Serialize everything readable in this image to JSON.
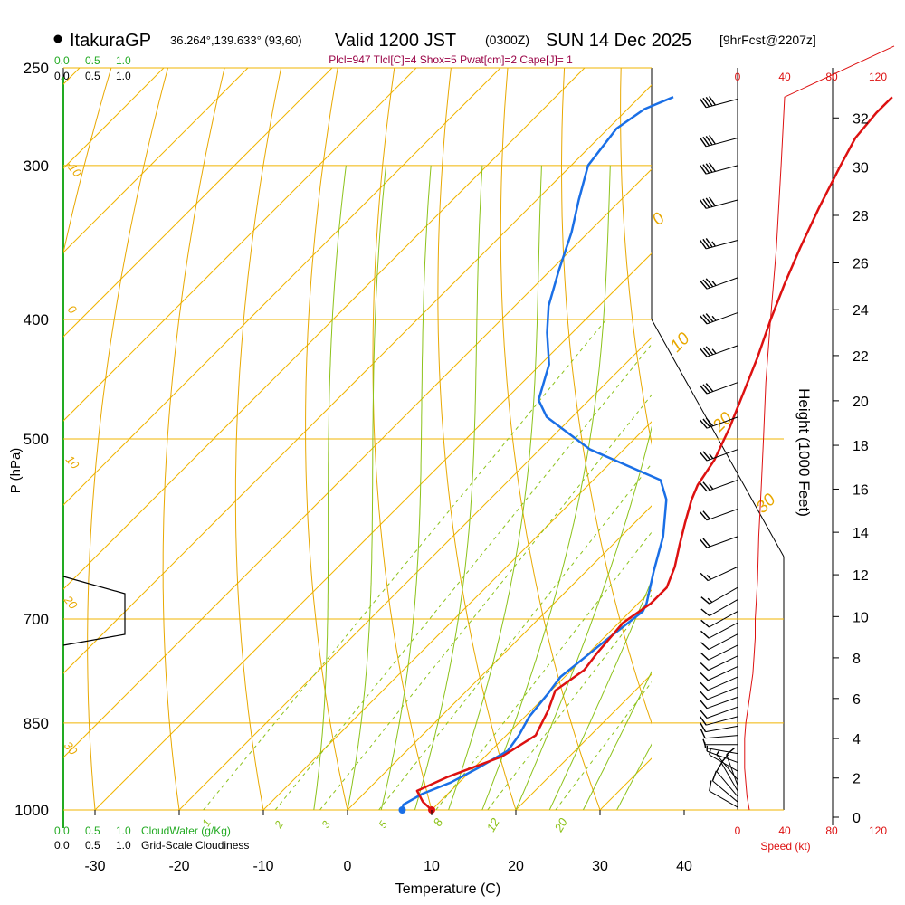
{
  "header": {
    "site": "ItakuraGP",
    "coords": "36.264°,139.633° (93,60)",
    "valid": "Valid 1200 JST",
    "zulu": "(0300Z)",
    "date": "SUN 14 Dec 2025",
    "fcst": "[9hrFcst@2207z]"
  },
  "params_line": "Plcl=947 Tlcl[C]=4 Shox=5 Pwat[cm]=2 Cape[J]= 1",
  "colors": {
    "temp": "#dd1111",
    "dewpoint": "#1a6fe6",
    "isotherm": "#f0b400",
    "dry_adiabat": "#e8a800",
    "moist_adiabat": "#8cc21a",
    "mixing_ratio": "#8cc21a",
    "cloudwater": "#22aa22",
    "wind": "#000000",
    "speed": "#dd1111",
    "params": "#990044"
  },
  "chart_data": {
    "type": "line",
    "title": "ItakuraGP Valid 1200 JST (0300Z) SUN 14 Dec 2025 [9hrFcst@2207z]",
    "xlabel": "Temperature (C)",
    "ylabel": "P (hPa)",
    "y2label": "Height (1000 Feet)",
    "x_ticks": [
      -30,
      -20,
      -10,
      0,
      10,
      20,
      30,
      40
    ],
    "xlim": [
      -34,
      36
    ],
    "pressure_ticks": [
      1000,
      850,
      700,
      500,
      400,
      300,
      250
    ],
    "ylim": [
      1000,
      250
    ],
    "height_ticks": [
      0,
      2,
      4,
      6,
      8,
      10,
      12,
      14,
      16,
      18,
      20,
      22,
      24,
      26,
      28,
      30,
      32
    ],
    "series": [
      {
        "name": "Temperature",
        "points": [
          [
            10,
            1000
          ],
          [
            8,
            985
          ],
          [
            6,
            965
          ],
          [
            8,
            940
          ],
          [
            12,
            905
          ],
          [
            13.5,
            870
          ],
          [
            12,
            830
          ],
          [
            10.5,
            800
          ],
          [
            11.5,
            770
          ],
          [
            11,
            745
          ],
          [
            10.5,
            705
          ],
          [
            11.5,
            680
          ],
          [
            11.5,
            660
          ],
          [
            10,
            635
          ],
          [
            8,
            610
          ],
          [
            6,
            585
          ],
          [
            4,
            560
          ],
          [
            3,
            545
          ],
          [
            2,
            520
          ],
          [
            0,
            490
          ],
          [
            -2,
            465
          ],
          [
            -5,
            430
          ],
          [
            -8,
            400
          ],
          [
            -10.5,
            375
          ],
          [
            -13,
            350
          ],
          [
            -15.5,
            325
          ],
          [
            -18,
            300
          ],
          [
            -19.5,
            285
          ],
          [
            -20,
            272
          ],
          [
            -20,
            264
          ]
        ]
      },
      {
        "name": "Dewpoint",
        "points": [
          [
            6.5,
            1000
          ],
          [
            6,
            990
          ],
          [
            7,
            970
          ],
          [
            9,
            950
          ],
          [
            10.5,
            925
          ],
          [
            12,
            895
          ],
          [
            11.5,
            870
          ],
          [
            10.5,
            840
          ],
          [
            10,
            805
          ],
          [
            9.5,
            780
          ],
          [
            10,
            755
          ],
          [
            10.5,
            730
          ],
          [
            11.5,
            690
          ],
          [
            11,
            680
          ],
          [
            8,
            640
          ],
          [
            5,
            600
          ],
          [
            1,
            560
          ],
          [
            -2,
            540
          ],
          [
            -14,
            510
          ],
          [
            -23,
            480
          ],
          [
            -26,
            465
          ],
          [
            -29,
            435
          ],
          [
            -33,
            410
          ],
          [
            -36,
            390
          ],
          [
            -39,
            365
          ],
          [
            -42,
            340
          ],
          [
            -45,
            320
          ],
          [
            -48,
            300
          ],
          [
            -49,
            280
          ],
          [
            -48,
            270
          ],
          [
            -46,
            264
          ]
        ]
      }
    ],
    "dry_adiabat_labels": [
      "-10",
      "0",
      "10",
      "20",
      "30",
      "0",
      "10",
      "20",
      "30"
    ],
    "moist_adiabat_labels": [
      "8",
      "12",
      "20"
    ],
    "mixing_ratio_labels": [
      "1",
      "2",
      "3",
      "5"
    ],
    "cloudwater_scale": [
      "0.0",
      "0.5",
      "1.0"
    ],
    "cloudwater_label": "CloudWater (g/Kg)",
    "cloudiness_scale": [
      "0.0",
      "0.5",
      "1.0"
    ],
    "cloudiness_label": "Grid-Scale Cloudiness",
    "speed_scale": [
      "0",
      "40",
      "80",
      "120"
    ],
    "speed_label": "Speed (kt)",
    "wind_profile_kt": [
      [
        10,
        1000
      ],
      [
        8,
        975
      ],
      [
        7,
        950
      ],
      [
        6,
        925
      ],
      [
        6,
        900
      ],
      [
        6,
        875
      ],
      [
        7,
        850
      ],
      [
        9,
        825
      ],
      [
        11,
        800
      ],
      [
        13,
        775
      ],
      [
        14,
        750
      ],
      [
        15,
        725
      ],
      [
        15,
        700
      ],
      [
        16,
        675
      ],
      [
        17,
        650
      ],
      [
        18,
        600
      ],
      [
        20,
        550
      ],
      [
        22,
        500
      ],
      [
        24,
        450
      ],
      [
        28,
        400
      ],
      [
        33,
        350
      ],
      [
        37,
        300
      ],
      [
        40,
        264
      ]
    ],
    "wind_barbs": [
      {
        "p": 995,
        "dir": 300,
        "kt": 10
      },
      {
        "p": 985,
        "dir": 310,
        "kt": 10
      },
      {
        "p": 975,
        "dir": 320,
        "kt": 10
      },
      {
        "p": 965,
        "dir": 330,
        "kt": 10
      },
      {
        "p": 955,
        "dir": 340,
        "kt": 10
      },
      {
        "p": 945,
        "dir": 320,
        "kt": 5
      },
      {
        "p": 930,
        "dir": 300,
        "kt": 5
      },
      {
        "p": 915,
        "dir": 290,
        "kt": 5
      },
      {
        "p": 900,
        "dir": 280,
        "kt": 5
      },
      {
        "p": 885,
        "dir": 270,
        "kt": 5
      },
      {
        "p": 870,
        "dir": 265,
        "kt": 10
      },
      {
        "p": 855,
        "dir": 260,
        "kt": 10
      },
      {
        "p": 840,
        "dir": 255,
        "kt": 10
      },
      {
        "p": 825,
        "dir": 250,
        "kt": 10
      },
      {
        "p": 810,
        "dir": 250,
        "kt": 10
      },
      {
        "p": 795,
        "dir": 248,
        "kt": 10
      },
      {
        "p": 780,
        "dir": 246,
        "kt": 10
      },
      {
        "p": 765,
        "dir": 245,
        "kt": 10
      },
      {
        "p": 750,
        "dir": 244,
        "kt": 10
      },
      {
        "p": 735,
        "dir": 243,
        "kt": 10
      },
      {
        "p": 720,
        "dir": 242,
        "kt": 10
      },
      {
        "p": 705,
        "dir": 242,
        "kt": 10
      },
      {
        "p": 690,
        "dir": 241,
        "kt": 10
      },
      {
        "p": 675,
        "dir": 240,
        "kt": 10
      },
      {
        "p": 660,
        "dir": 240,
        "kt": 15
      },
      {
        "p": 635,
        "dir": 245,
        "kt": 15
      },
      {
        "p": 600,
        "dir": 250,
        "kt": 20
      },
      {
        "p": 570,
        "dir": 250,
        "kt": 20
      },
      {
        "p": 540,
        "dir": 250,
        "kt": 25
      },
      {
        "p": 510,
        "dir": 250,
        "kt": 25
      },
      {
        "p": 480,
        "dir": 250,
        "kt": 30
      },
      {
        "p": 450,
        "dir": 250,
        "kt": 30
      },
      {
        "p": 420,
        "dir": 250,
        "kt": 35
      },
      {
        "p": 395,
        "dir": 250,
        "kt": 35
      },
      {
        "p": 370,
        "dir": 250,
        "kt": 35
      },
      {
        "p": 345,
        "dir": 255,
        "kt": 35
      },
      {
        "p": 320,
        "dir": 255,
        "kt": 40
      },
      {
        "p": 300,
        "dir": 255,
        "kt": 40
      },
      {
        "p": 285,
        "dir": 255,
        "kt": 40
      },
      {
        "p": 265,
        "dir": 255,
        "kt": 40
      }
    ]
  }
}
